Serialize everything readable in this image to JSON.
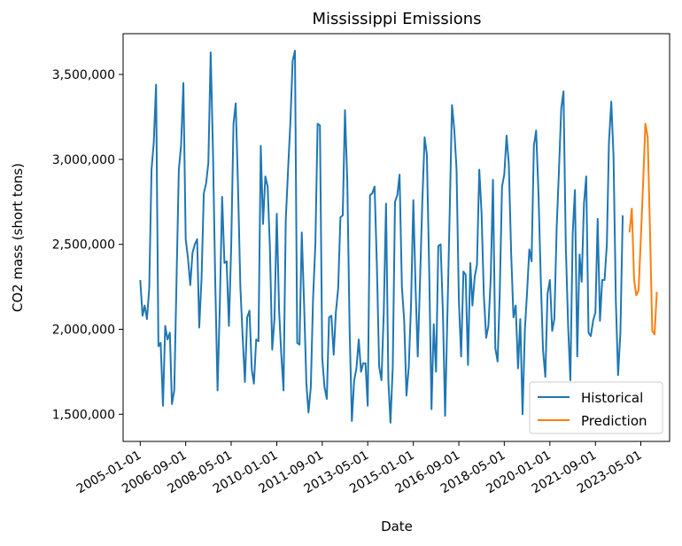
{
  "chart_data": {
    "type": "line",
    "title": "Mississippi Emissions",
    "xlabel": "Date",
    "ylabel": "CO2 mass (short tons)",
    "xlim": [
      "2004-05-17",
      "2024-05-20"
    ],
    "ylim": [
      1340000,
      3740000
    ],
    "grid": false,
    "legend_position": "bottom-right",
    "x_tick_labels": [
      "2005-01-01",
      "2006-09-01",
      "2008-05-01",
      "2010-01-01",
      "2011-09-01",
      "2013-05-01",
      "2015-01-01",
      "2016-09-01",
      "2018-05-01",
      "2020-01-01",
      "2021-09-01",
      "2023-05-01"
    ],
    "y_ticks": [
      1500000,
      2000000,
      2500000,
      3000000,
      3500000
    ],
    "y_tick_labels": [
      "1,500,000",
      "2,000,000",
      "2,500,000",
      "3,000,000",
      "3,500,000"
    ],
    "series": [
      {
        "name": "Historical",
        "color": "#1f77b4",
        "x_start": "2005-01",
        "frequency": "monthly",
        "values": [
          2290000,
          2080000,
          2140000,
          2060000,
          2240000,
          2940000,
          3100000,
          3440000,
          1900000,
          1920000,
          1550000,
          2020000,
          1940000,
          1980000,
          1560000,
          1640000,
          2280000,
          2940000,
          3080000,
          3450000,
          2530000,
          2420000,
          2260000,
          2450000,
          2500000,
          2530000,
          2010000,
          2300000,
          2800000,
          2860000,
          2980000,
          3630000,
          3040000,
          2280000,
          1640000,
          2140000,
          2780000,
          2390000,
          2400000,
          2020000,
          2480000,
          3210000,
          3330000,
          2830000,
          2250000,
          1960000,
          1690000,
          2070000,
          2110000,
          1760000,
          1680000,
          1940000,
          1930000,
          3080000,
          2620000,
          2900000,
          2840000,
          2480000,
          1880000,
          2060000,
          2680000,
          2110000,
          1860000,
          1640000,
          2640000,
          2940000,
          3210000,
          3580000,
          3640000,
          1920000,
          1910000,
          2570000,
          2150000,
          1680000,
          1510000,
          1660000,
          2180000,
          2500000,
          3210000,
          3200000,
          1830000,
          1660000,
          1590000,
          2070000,
          2080000,
          1850000,
          2100000,
          2240000,
          2660000,
          2670000,
          3290000,
          2870000,
          2000000,
          1460000,
          1700000,
          1770000,
          1940000,
          1750000,
          1800000,
          1800000,
          1550000,
          2790000,
          2800000,
          2840000,
          2370000,
          1780000,
          1700000,
          2090000,
          2740000,
          1700000,
          1450000,
          1780000,
          2750000,
          2790000,
          2910000,
          2250000,
          2050000,
          1610000,
          1780000,
          2140000,
          2760000,
          2230000,
          1840000,
          2290000,
          2750000,
          3130000,
          3030000,
          2350000,
          1530000,
          2030000,
          1750000,
          2490000,
          2500000,
          2090000,
          1490000,
          2090000,
          2680000,
          3320000,
          3180000,
          2940000,
          2170000,
          1840000,
          2340000,
          2320000,
          1790000,
          2390000,
          2140000,
          2310000,
          2380000,
          2940000,
          2690000,
          2200000,
          1950000,
          2020000,
          2300000,
          2880000,
          1890000,
          1810000,
          2200000,
          2840000,
          2910000,
          3140000,
          2970000,
          2450000,
          2070000,
          2140000,
          1770000,
          2060000,
          1500000,
          2000000,
          2210000,
          2470000,
          2400000,
          3080000,
          3170000,
          2810000,
          2300000,
          1880000,
          1720000,
          2210000,
          2290000,
          1990000,
          2060000,
          2600000,
          2930000,
          3300000,
          3400000,
          2490000,
          2020000,
          1700000,
          2560000,
          2820000,
          1840000,
          2440000,
          2280000,
          2740000,
          2900000,
          1980000,
          1960000,
          2050000,
          2100000,
          2650000,
          2050000,
          2290000,
          2290000,
          2500000,
          3100000,
          3340000,
          3020000,
          2170000,
          1730000,
          1980000,
          2670000
        ]
      },
      {
        "name": "Prediction",
        "color": "#ff7f0e",
        "x_start": "2022-12",
        "frequency": "monthly",
        "values": [
          2570000,
          2710000,
          2290000,
          2200000,
          2230000,
          2530000,
          2860000,
          3210000,
          3130000,
          2580000,
          1990000,
          1970000,
          2220000
        ]
      }
    ]
  }
}
